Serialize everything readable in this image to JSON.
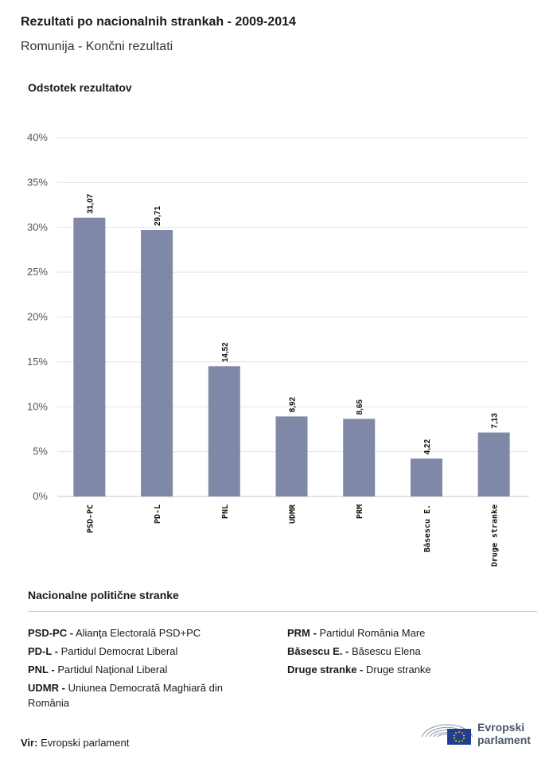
{
  "header": {
    "title": "Rezultati po nacionalnih strankah - 2009-2014",
    "subtitle": "Romunija - Končni rezultati"
  },
  "colors": {
    "bar": "#7f88a6",
    "grid": "#e3e3e3",
    "axis": "#c8c8c8"
  },
  "chart_data": {
    "type": "bar",
    "ylabel": "Odstotek rezultatov",
    "ylim": [
      0,
      40
    ],
    "yticks": [
      "0%",
      "5%",
      "10%",
      "15%",
      "20%",
      "25%",
      "30%",
      "35%",
      "40%"
    ],
    "categories": [
      "PSD-PC",
      "PD-L",
      "PNL",
      "UDMR",
      "PRM",
      "Băsescu E.",
      "Druge stranke"
    ],
    "values": [
      31.07,
      29.71,
      14.52,
      8.92,
      8.65,
      4.22,
      7.13
    ],
    "value_labels": [
      "31,07",
      "29,71",
      "14,52",
      "8,92",
      "8,65",
      "4,22",
      "7,13"
    ],
    "grid": true
  },
  "legend": {
    "title": "Nacionalne politične stranke",
    "left": [
      {
        "abbr": "PSD-PC -",
        "name": "Alianţa Electorală PSD+PC"
      },
      {
        "abbr": "PD-L -",
        "name": "Partidul Democrat Liberal"
      },
      {
        "abbr": "PNL -",
        "name": "Partidul Naţional Liberal"
      },
      {
        "abbr": "UDMR -",
        "name": "Uniunea Democrată Maghiară din România"
      }
    ],
    "right": [
      {
        "abbr": "PRM -",
        "name": "Partidul România Mare"
      },
      {
        "abbr": "Băsescu E. -",
        "name": "Băsescu Elena"
      },
      {
        "abbr": "Druge stranke -",
        "name": "Druge stranke"
      }
    ]
  },
  "footer": {
    "source_label": "Vir:",
    "source_value": "Evropski parlament",
    "logo_line1": "Evropski",
    "logo_line2": "parlament"
  }
}
